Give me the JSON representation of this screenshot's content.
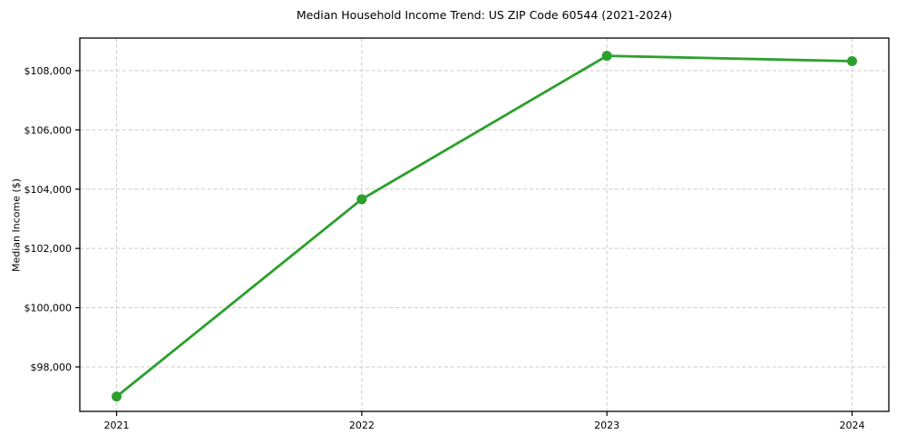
{
  "chart_data": {
    "type": "line",
    "title": "Median Household Income Trend: US ZIP Code 60544 (2021-2024)",
    "xlabel": "",
    "ylabel": "Median Income ($)",
    "categories": [
      2021,
      2022,
      2023,
      2024
    ],
    "series": [
      {
        "name": "Median Household Income",
        "values": [
          97000,
          103660,
          108500,
          108320
        ]
      }
    ],
    "x_tick_labels": [
      "2021",
      "2022",
      "2023",
      "2024"
    ],
    "y_tick_values": [
      98000,
      100000,
      102000,
      104000,
      106000,
      108000
    ],
    "y_tick_labels": [
      "$98,000",
      "$100,000",
      "$102,000",
      "$104,000",
      "$106,000",
      "$108,000"
    ],
    "xlim": [
      2020.85,
      2024.15
    ],
    "ylim": [
      96500,
      109100
    ],
    "grid": "on",
    "grid_style": "dashed",
    "legend_position": "none",
    "colors": {
      "line": "#2ca02c",
      "marker": "#2ca02c",
      "grid": "#cccccc",
      "axis": "#000000",
      "text": "#000000",
      "background": "#ffffff"
    }
  }
}
